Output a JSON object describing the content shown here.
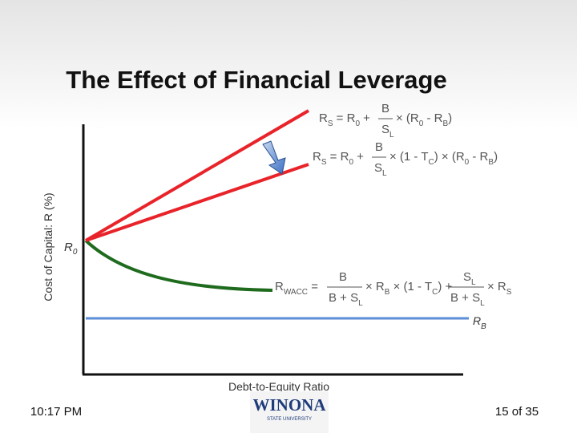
{
  "title": "The Effect of Financial Leverage",
  "axes": {
    "y_label": "Cost of Capital: R (%)",
    "x_label": "Debt-to-Equity Ratio"
  },
  "labels": {
    "r0": "R",
    "r0_sub": "0",
    "rb": "R",
    "rb_sub": "B"
  },
  "formulas": [
    {
      "parts": [
        "R",
        "S",
        " = R",
        "0",
        " +",
        "B",
        "S",
        "L",
        "× (R",
        "0",
        " - R",
        "B",
        ")"
      ]
    },
    {
      "parts": [
        "R",
        "S",
        " = R",
        "0",
        " +",
        "B",
        "S",
        "L",
        "× (1 - T",
        "C",
        ") × (R",
        "0",
        " - R",
        "B",
        ")"
      ]
    },
    {
      "parts": [
        "R",
        "WACC",
        " =",
        "B",
        "B + S",
        "L",
        "× R",
        "B",
        " × (1 - T",
        "C",
        ") +",
        "S",
        "L",
        "B + S",
        "L",
        "× R",
        "S"
      ]
    }
  ],
  "footer": {
    "time": "10:17 PM",
    "page": "15 of 35",
    "logo": "WINONA",
    "logo_sub": "STATE UNIVERSITY"
  }
}
